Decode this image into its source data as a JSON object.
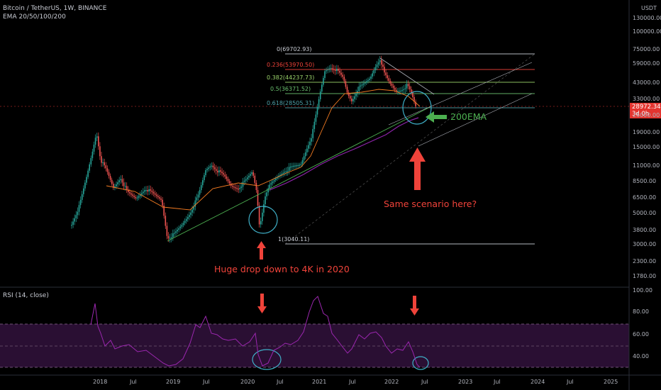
{
  "header": {
    "symbol_line": "Bitcoin / TetherUS, 1W, BINANCE",
    "indicator_line": "EMA 20/50/100/200"
  },
  "price_axis": {
    "currency": "USDT",
    "ticks": [
      "130000.00",
      "100000.00",
      "75000.00",
      "59000.00",
      "43000.00",
      "33000.00",
      "25000.00",
      "19000.00",
      "15000.00",
      "11000.00",
      "8500.00",
      "6500.00",
      "5000.00",
      "3800.00",
      "3000.00",
      "2300.00",
      "1780.00"
    ],
    "last_price": "28972.34",
    "countdown": "3d 0h"
  },
  "rsi_panel": {
    "label": "RSI (14, close)",
    "ticks": [
      "100.00",
      "80.00",
      "60.00",
      "40.00"
    ]
  },
  "time_axis": {
    "labels": [
      "2018",
      "Jul",
      "2019",
      "Jul",
      "2020",
      "Jul",
      "2021",
      "Jul",
      "2022",
      "Jul",
      "2023",
      "Jul",
      "2024",
      "Jul",
      "2025"
    ]
  },
  "fib_levels": [
    {
      "label": "0(69702.93)",
      "color": "#c9ccd4"
    },
    {
      "label": "0.236(53970.50)",
      "color": "#f0433a"
    },
    {
      "label": "0.382(44237.73)",
      "color": "#9bd36b"
    },
    {
      "label": "0.5(36371.52)",
      "color": "#6bc16f"
    },
    {
      "label": "0.618(28505.31)",
      "color": "#4fa0a8"
    },
    {
      "label": "1(3040.11)",
      "color": "#c9ccd4"
    }
  ],
  "annotations": {
    "ema_label": "200EMA",
    "question": "Same scenario here?",
    "drop_note": "Huge drop down to 4K in 2020"
  },
  "colors": {
    "background": "#000000",
    "candle_up": "#26a69a",
    "candle_down": "#ef5350",
    "ema_orange": "#f57c22",
    "ema_purple": "#8e24aa",
    "trendline": "#4caf50",
    "annotation_red": "#f0433a",
    "annotation_green": "#4caf50",
    "circle_teal": "#3fb0c8",
    "rsi_line": "#9c27b0",
    "rsi_band": "#2a0f33"
  }
}
